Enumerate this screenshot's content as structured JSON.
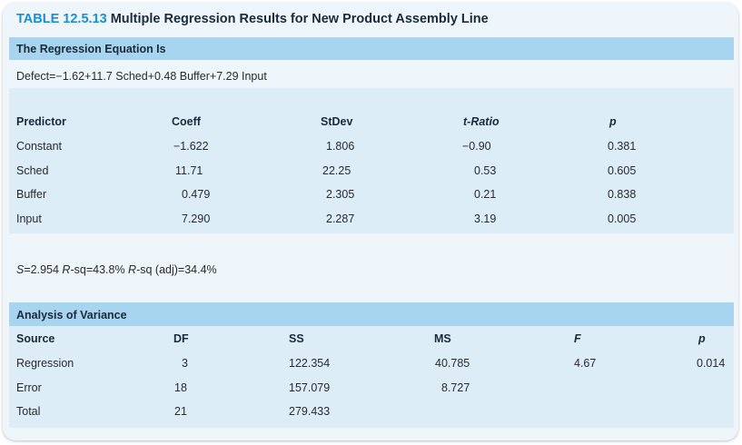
{
  "table": {
    "label": "TABLE 12.5.13",
    "title": "Multiple Regression Results for New Product Assembly Line"
  },
  "regression": {
    "header": "The Regression Equation Is",
    "equation": "Defect=−1.62+11.7 Sched+0.48 Buffer+7.29 Input"
  },
  "predictors": {
    "columns": [
      "Predictor",
      "Coeff",
      "StDev",
      "t-Ratio",
      "p"
    ],
    "rows": [
      [
        "Constant",
        "−1.622",
        "1.806",
        "−0.90",
        "0.381"
      ],
      [
        "Sched",
        "11.71",
        "22.25",
        "0.53",
        "0.605"
      ],
      [
        "Buffer",
        "0.479",
        "2.305",
        "0.21",
        "0.838"
      ],
      [
        "Input",
        "7.290",
        "2.287",
        "3.19",
        "0.005"
      ]
    ]
  },
  "fit": {
    "s_label": "S",
    "s_value": "=2.954",
    "rsq_label": "R",
    "rsq_value": "-sq=43.8%",
    "rsqadj_label": "R",
    "rsqadj_value": "-sq (adj)=34.4%"
  },
  "anova": {
    "header": "Analysis of Variance",
    "columns": [
      "Source",
      "DF",
      "SS",
      "MS",
      "F",
      "p"
    ],
    "rows": [
      [
        "Regression",
        "3",
        "122.354",
        "40.785",
        "4.67",
        "0.014"
      ],
      [
        "Error",
        "18",
        "157.079",
        "8.727",
        "",
        ""
      ],
      [
        "Total",
        "21",
        "279.433",
        "",
        "",
        ""
      ]
    ]
  },
  "colors": {
    "accent": "#1a8fd0",
    "header_band": "#a7d4ef",
    "panel": "#dcedf8",
    "frame": "#eef6fb"
  }
}
